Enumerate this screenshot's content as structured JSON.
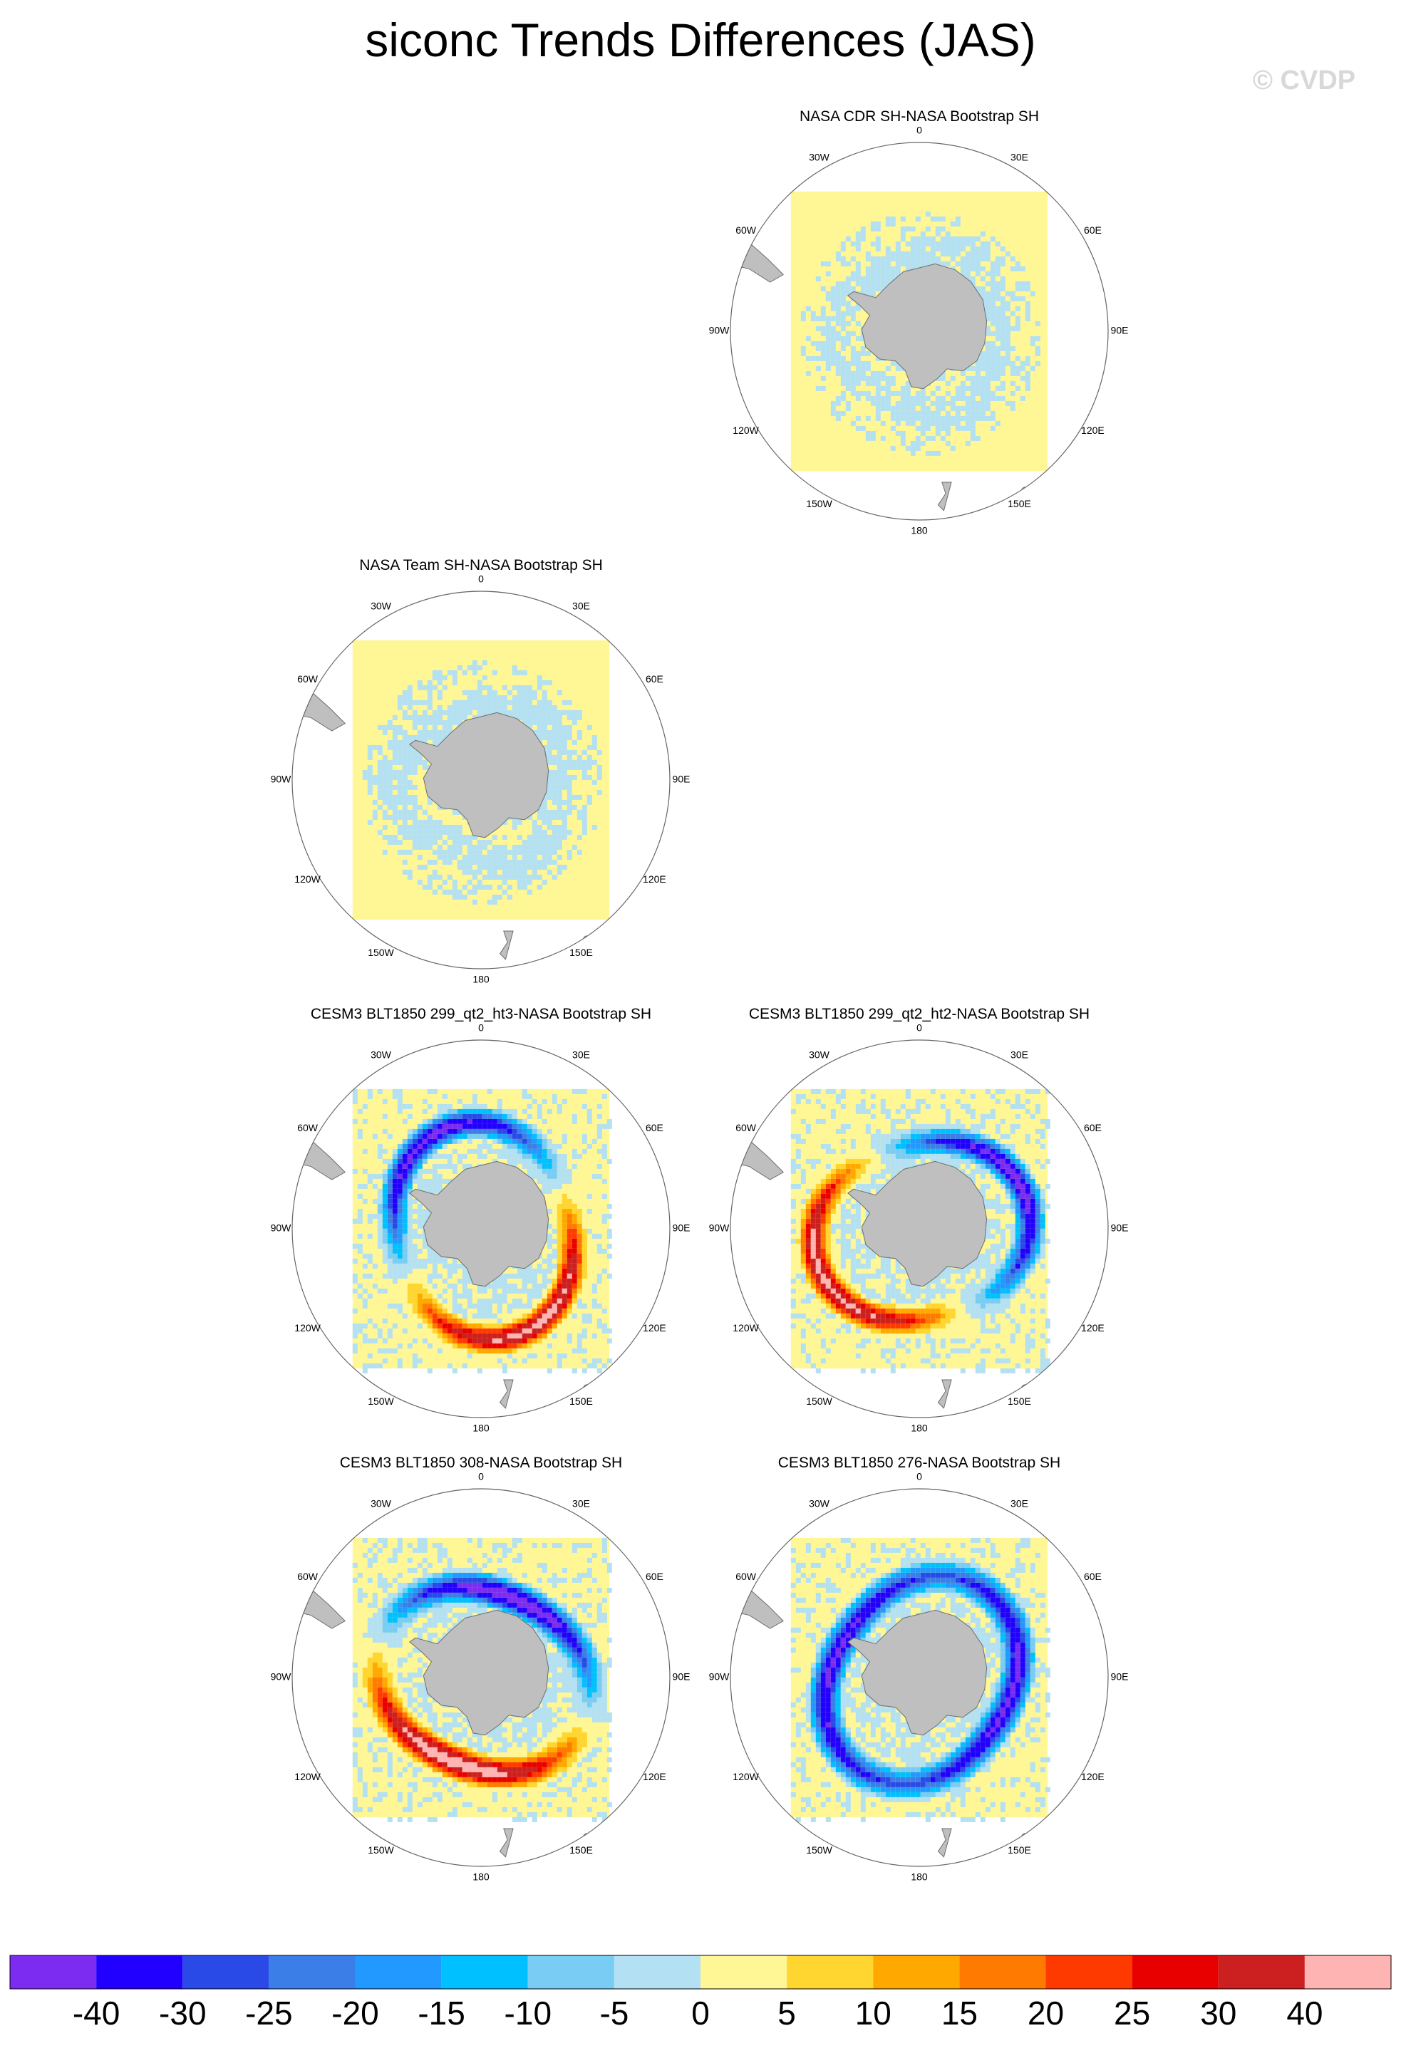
{
  "page": {
    "title": "siconc Trends Differences (JAS)",
    "watermark": "© CVDP"
  },
  "chart_data": {
    "type": "heatmap",
    "projection": "south polar stereographic",
    "units": "",
    "longitude_labels": [
      "0",
      "30E",
      "60E",
      "90E",
      "120E",
      "150E",
      "180",
      "150W",
      "120W",
      "90W",
      "60W",
      "30W"
    ],
    "colorbar": {
      "labels": [
        "-40",
        "-30",
        "-25",
        "-20",
        "-15",
        "-10",
        "-5",
        "0",
        "5",
        "10",
        "15",
        "20",
        "25",
        "30",
        "40"
      ],
      "colors": [
        "#7b2cf0",
        "#2200ff",
        "#2a4ae8",
        "#3c7ee8",
        "#2299ff",
        "#00c0ff",
        "#79ccf4",
        "#b3e0f2",
        "#fff696",
        "#ffd530",
        "#ffa800",
        "#ff7a00",
        "#ff3a00",
        "#e80000",
        "#cc2020",
        "#ffb4b4"
      ]
    },
    "panels": [
      {
        "title": "NASA CDR SH-NASA Bootstrap SH",
        "pattern": "weak",
        "lon0": 0,
        "amp": 0,
        "width": 0
      },
      {
        "title": "NASA Team SH-NASA Bootstrap SH",
        "pattern": "weak",
        "lon0": 0,
        "amp": 0,
        "width": 0
      },
      {
        "title": "CESM3 BLT1850 299_qt2_ht3-NASA Bootstrap SH",
        "pattern": "mixed",
        "lon0": 60,
        "amp": 40,
        "width": 0.09
      },
      {
        "title": "CESM3 BLT1850 299_qt2_ht2-NASA Bootstrap SH",
        "pattern": "mixed",
        "lon0": 150,
        "amp": 40,
        "width": 0.09
      },
      {
        "title": "CESM3 BLT1850 308-NASA Bootstrap SH",
        "pattern": "mixed",
        "lon0": 110,
        "amp": 45,
        "width": 0.1
      },
      {
        "title": "CESM3 BLT1850 276-NASA Bootstrap SH",
        "pattern": "negative",
        "lon0": 190,
        "amp": 45,
        "width": 0.1
      }
    ]
  }
}
